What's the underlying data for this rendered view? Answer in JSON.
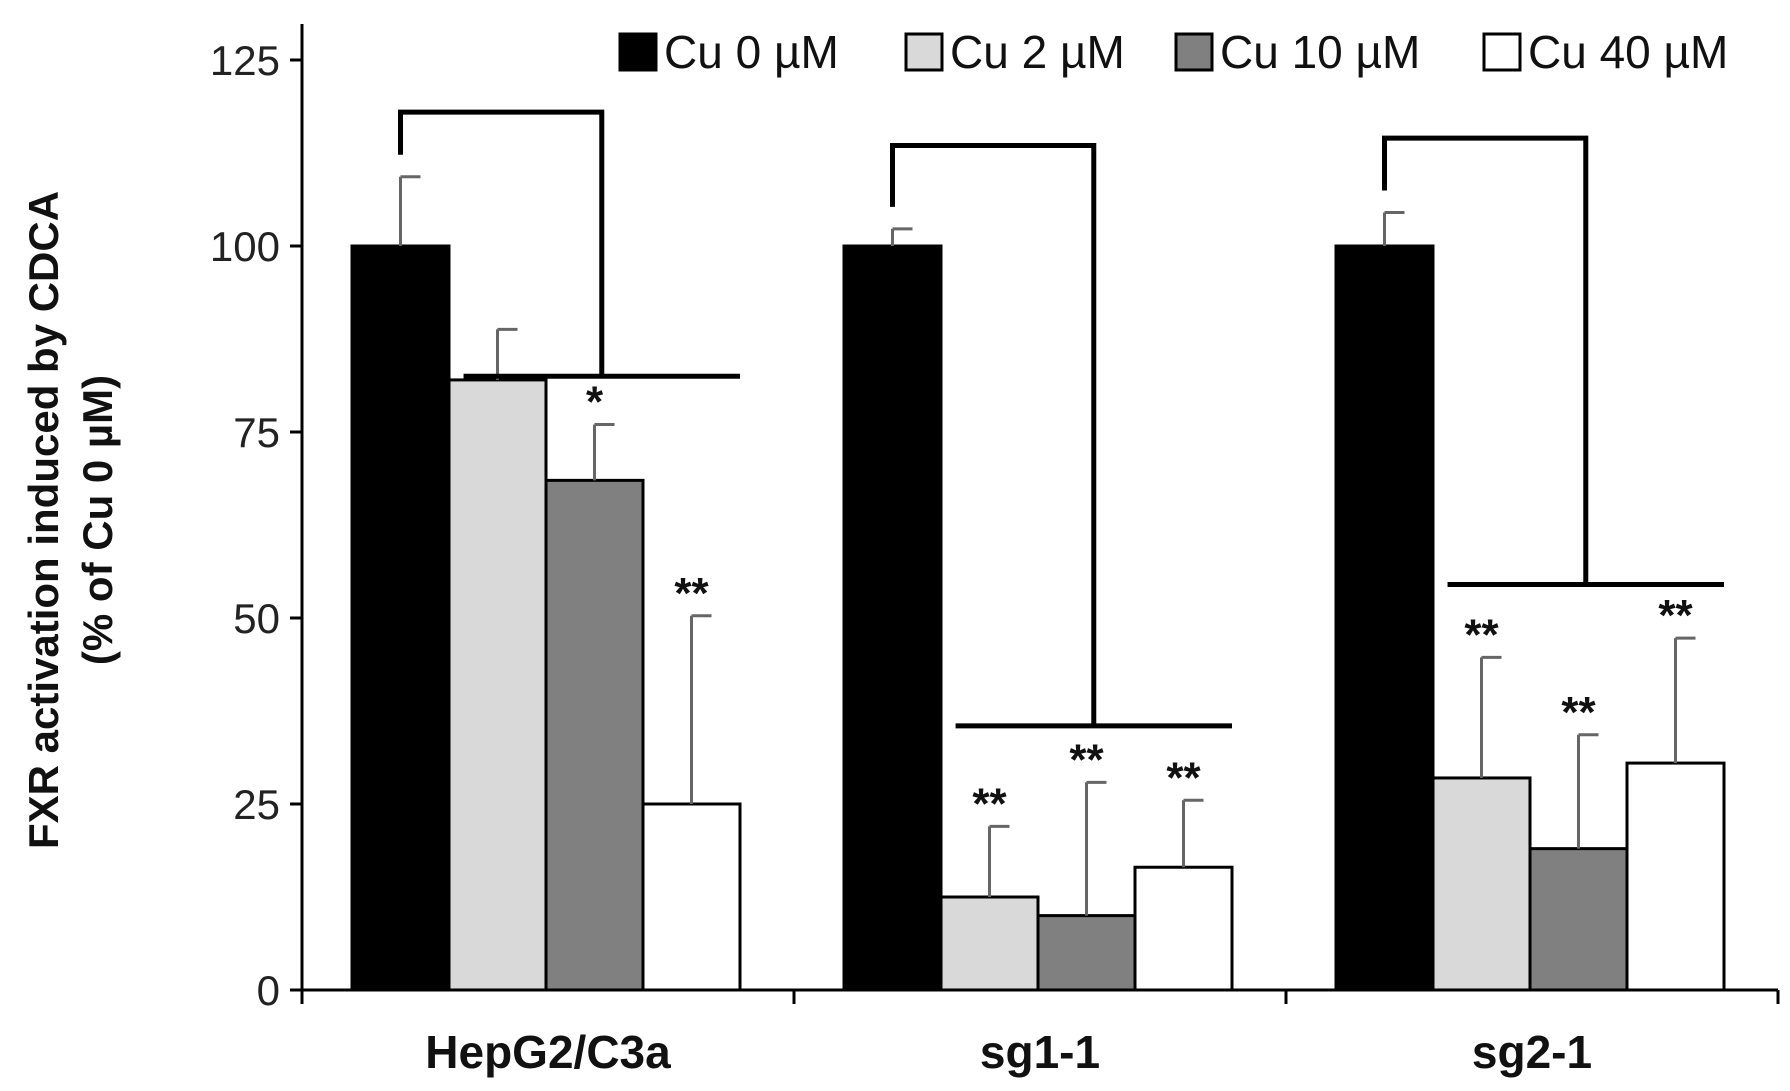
{
  "chart_data": {
    "type": "bar",
    "title": "",
    "xlabel": "",
    "ylabel": "FXR activation induced by CDCA",
    "ylabel_line2": "(% of Cu 0 µM)",
    "ylim": [
      0,
      130
    ],
    "yticks": [
      0,
      25,
      50,
      75,
      100,
      125
    ],
    "ytick_labels": [
      "0",
      "25",
      "50",
      "75",
      "100",
      "125"
    ],
    "categories": [
      "HepG2/C3a",
      "sg1-1",
      "sg2-1"
    ],
    "series": [
      {
        "name": "Cu 0 µM",
        "color": "#000000",
        "values": [
          100,
          100,
          100
        ],
        "errors": [
          9.3,
          2.3,
          4.5
        ],
        "sig": [
          "",
          "",
          ""
        ]
      },
      {
        "name": "Cu 2 µM",
        "color": "#d9d9d9",
        "values": [
          82,
          12.5,
          28.5
        ],
        "errors": [
          6.8,
          9.5,
          16.2
        ],
        "sig": [
          "",
          "**",
          "**"
        ]
      },
      {
        "name": "Cu 10 µM",
        "color": "#808080",
        "values": [
          68.5,
          10,
          19
        ],
        "errors": [
          7.5,
          17.9,
          15.3
        ],
        "sig": [
          "*",
          "**",
          "**"
        ]
      },
      {
        "name": "Cu 40 µM",
        "color": "#ffffff",
        "values": [
          25,
          16.5,
          30.5
        ],
        "errors": [
          25.3,
          9,
          16.8
        ],
        "sig": [
          "**",
          "**",
          "**"
        ]
      }
    ],
    "brackets": [
      {
        "category": "HepG2/C3a",
        "top": 118,
        "low": 82.5
      },
      {
        "category": "sg1-1",
        "top": 113.5,
        "low": 35.5
      },
      {
        "category": "sg2-1",
        "top": 114.5,
        "low": 54.5
      }
    ],
    "legend_position": "top-right",
    "grid": false
  }
}
